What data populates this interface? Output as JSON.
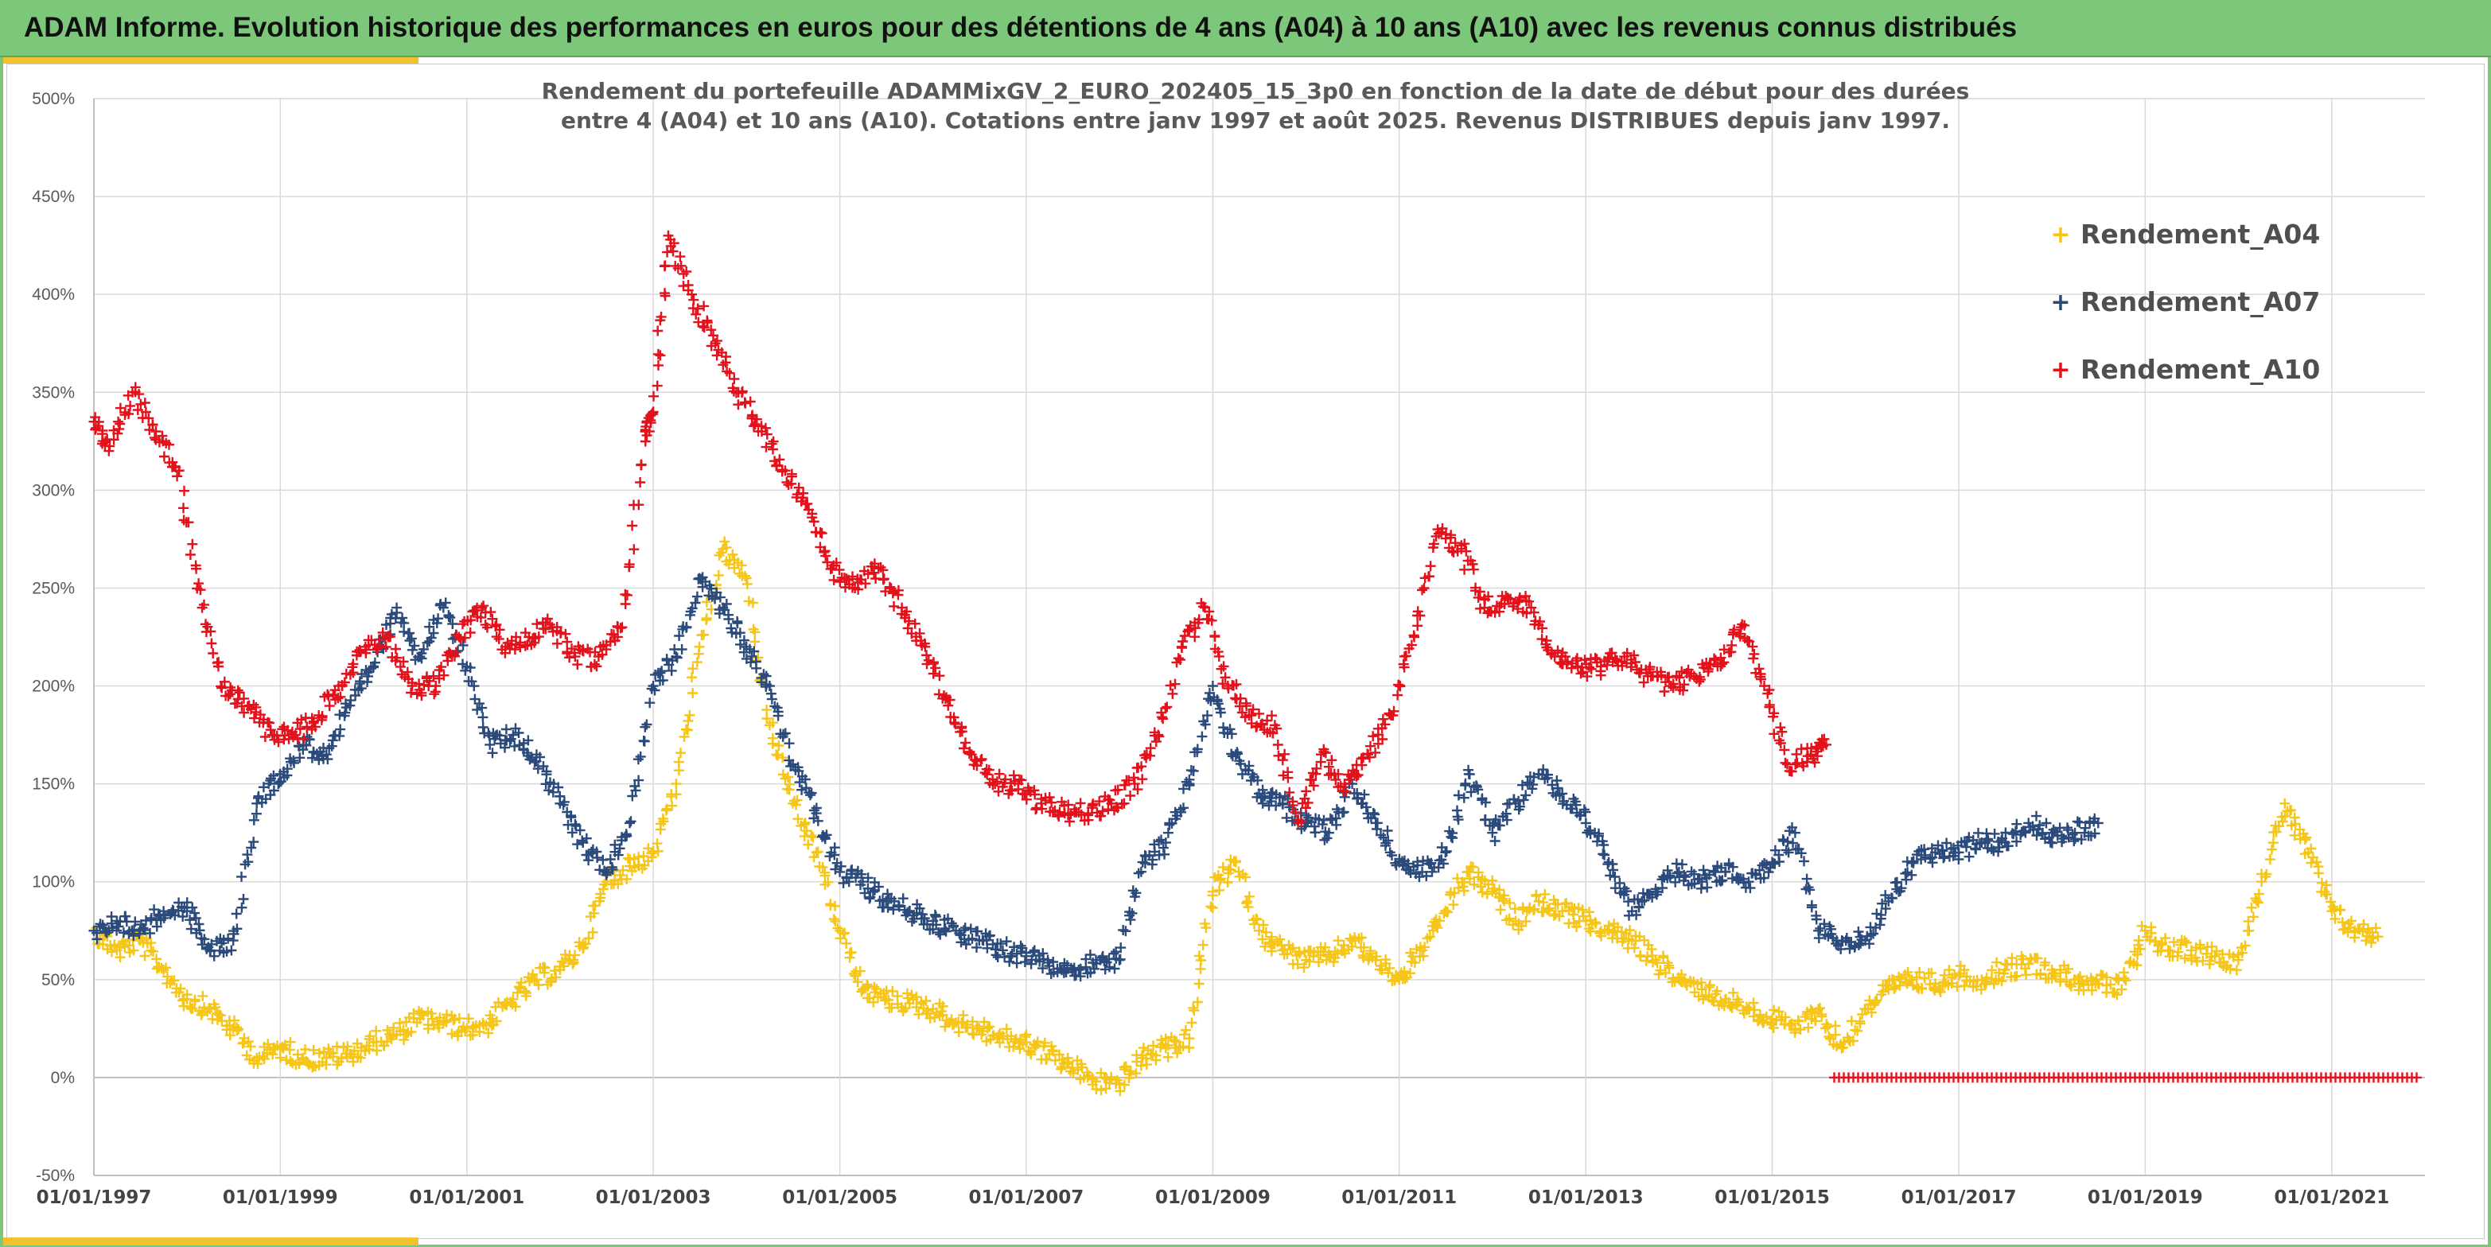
{
  "header": {
    "title": "ADAM Informe. Evolution historique des performances en euros pour des détentions de 4 ans (A04) à 10 ans (A10) avec les revenus connus distribués"
  },
  "colors": {
    "banner": "#7dc77a",
    "accent": "#f2c12e",
    "A04": "#f5c518",
    "A07": "#2b4a7c",
    "A10": "#e3111b",
    "grid": "#d9d9d9",
    "zero_line": "#bfbfbf"
  },
  "chart_data": {
    "type": "scatter",
    "marker": "plus",
    "title_lines": [
      "Rendement du portefeuille ADAMMixGV_2_EURO_202405_15_3p0  en fonction de la date de début pour des durées",
      "entre 4 (A04) et 10 ans (A10). Cotations entre janv 1997 et août 2025. Revenus DISTRIBUES depuis janv 1997."
    ],
    "xlabel": "",
    "ylabel": "",
    "x_range": [
      "1997-01-01",
      "2022-01-01"
    ],
    "ylim": [
      -50,
      500
    ],
    "y_ticks": [
      -50,
      0,
      50,
      100,
      150,
      200,
      250,
      300,
      350,
      400,
      450,
      500
    ],
    "y_tick_labels": [
      "-50%",
      "0%",
      "50%",
      "100%",
      "150%",
      "200%",
      "250%",
      "300%",
      "350%",
      "400%",
      "450%",
      "500%"
    ],
    "x_ticks": [
      "1997-01-01",
      "1999-01-01",
      "2001-01-01",
      "2003-01-01",
      "2005-01-01",
      "2007-01-01",
      "2009-01-01",
      "2011-01-01",
      "2013-01-01",
      "2015-01-01",
      "2017-01-01",
      "2019-01-01",
      "2021-01-01"
    ],
    "x_tick_labels": [
      "01/01/1997",
      "01/01/1999",
      "01/01/2001",
      "01/01/2003",
      "01/01/2005",
      "01/01/2007",
      "01/01/2009",
      "01/01/2011",
      "01/01/2013",
      "01/01/2015",
      "01/01/2017",
      "01/01/2019",
      "01/01/2021"
    ],
    "grid": true,
    "legend_position": "top-right",
    "series": [
      {
        "name": "Rendement_A04",
        "color": "#f5c518",
        "x": [
          "1997-01-01",
          "1997-04-01",
          "1997-07-01",
          "1997-10-01",
          "1998-01-01",
          "1998-04-01",
          "1998-07-01",
          "1998-10-01",
          "1999-01-01",
          "1999-04-01",
          "1999-07-01",
          "1999-10-01",
          "2000-01-01",
          "2000-04-01",
          "2000-07-01",
          "2000-10-01",
          "2001-01-01",
          "2001-04-01",
          "2001-07-01",
          "2001-10-01",
          "2002-01-01",
          "2002-04-01",
          "2002-07-01",
          "2002-10-01",
          "2003-01-01",
          "2003-04-01",
          "2003-07-01",
          "2003-10-01",
          "2004-01-01",
          "2004-04-01",
          "2004-07-01",
          "2004-10-01",
          "2005-01-01",
          "2005-04-01",
          "2005-07-01",
          "2005-10-01",
          "2006-01-01",
          "2006-04-01",
          "2006-07-01",
          "2006-10-01",
          "2007-01-01",
          "2007-04-01",
          "2007-07-01",
          "2007-10-01",
          "2008-01-01",
          "2008-04-01",
          "2008-07-01",
          "2008-10-01",
          "2009-01-01",
          "2009-04-01",
          "2009-07-01",
          "2009-10-01",
          "2010-01-01",
          "2010-04-01",
          "2010-07-01",
          "2010-10-01",
          "2011-01-01",
          "2011-04-01",
          "2011-07-01",
          "2011-10-01",
          "2012-01-01",
          "2012-04-01",
          "2012-07-01",
          "2012-10-01",
          "2013-01-01",
          "2013-04-01",
          "2013-07-01",
          "2013-10-01",
          "2014-01-01",
          "2014-04-01",
          "2014-07-01",
          "2014-10-01",
          "2015-01-01",
          "2015-04-01",
          "2015-07-01",
          "2015-10-01",
          "2016-01-01",
          "2016-04-01",
          "2016-07-01",
          "2016-10-01",
          "2017-01-01",
          "2017-04-01",
          "2017-07-01",
          "2017-10-01",
          "2018-01-01",
          "2018-04-01",
          "2018-07-01",
          "2018-10-01",
          "2019-01-01",
          "2019-04-01",
          "2019-07-01",
          "2019-10-01",
          "2020-01-01",
          "2020-04-01",
          "2020-07-01",
          "2020-10-01",
          "2021-01-01",
          "2021-04-01",
          "2021-07-01"
        ],
        "y": [
          75,
          65,
          70,
          55,
          40,
          35,
          25,
          10,
          15,
          10,
          10,
          12,
          18,
          22,
          30,
          28,
          25,
          28,
          40,
          50,
          55,
          68,
          100,
          108,
          115,
          150,
          220,
          270,
          255,
          180,
          140,
          115,
          75,
          45,
          40,
          38,
          35,
          28,
          25,
          20,
          18,
          12,
          5,
          -2,
          -3,
          10,
          15,
          20,
          95,
          110,
          75,
          65,
          60,
          62,
          70,
          60,
          50,
          65,
          85,
          105,
          95,
          80,
          90,
          85,
          80,
          75,
          70,
          60,
          50,
          45,
          40,
          35,
          30,
          25,
          35,
          15,
          35,
          45,
          50,
          48,
          52,
          50,
          55,
          58,
          55,
          50,
          48,
          45,
          75,
          65,
          65,
          62,
          60,
          100,
          140,
          115,
          85,
          75,
          72
        ]
      },
      {
        "name": "Rendement_A07",
        "color": "#2b4a7c",
        "x": [
          "1997-01-01",
          "1997-04-01",
          "1997-07-01",
          "1997-10-01",
          "1998-01-01",
          "1998-04-01",
          "1998-07-01",
          "1998-10-01",
          "1999-01-01",
          "1999-04-01",
          "1999-07-01",
          "1999-10-01",
          "2000-01-01",
          "2000-04-01",
          "2000-07-01",
          "2000-10-01",
          "2001-01-01",
          "2001-04-01",
          "2001-07-01",
          "2001-10-01",
          "2002-01-01",
          "2002-04-01",
          "2002-07-01",
          "2002-10-01",
          "2003-01-01",
          "2003-04-01",
          "2003-07-01",
          "2003-10-01",
          "2004-01-01",
          "2004-04-01",
          "2004-07-01",
          "2004-10-01",
          "2005-01-01",
          "2005-04-01",
          "2005-07-01",
          "2005-10-01",
          "2006-01-01",
          "2006-04-01",
          "2006-07-01",
          "2006-10-01",
          "2007-01-01",
          "2007-04-01",
          "2007-07-01",
          "2007-10-01",
          "2008-01-01",
          "2008-04-01",
          "2008-07-01",
          "2008-10-01",
          "2009-01-01",
          "2009-04-01",
          "2009-07-01",
          "2009-10-01",
          "2010-01-01",
          "2010-04-01",
          "2010-07-01",
          "2010-10-01",
          "2011-01-01",
          "2011-04-01",
          "2011-07-01",
          "2011-10-01",
          "2012-01-01",
          "2012-04-01",
          "2012-07-01",
          "2012-10-01",
          "2013-01-01",
          "2013-04-01",
          "2013-07-01",
          "2013-10-01",
          "2014-01-01",
          "2014-04-01",
          "2014-07-01",
          "2014-10-01",
          "2015-01-01",
          "2015-04-01",
          "2015-07-01",
          "2015-10-01",
          "2016-01-01",
          "2016-04-01",
          "2016-07-01",
          "2016-10-01",
          "2017-01-01",
          "2017-04-01",
          "2017-07-01",
          "2017-10-01",
          "2018-01-01",
          "2018-04-01",
          "2018-07-01"
        ],
        "y": [
          75,
          80,
          75,
          85,
          85,
          65,
          70,
          140,
          155,
          170,
          165,
          190,
          210,
          240,
          215,
          240,
          210,
          170,
          175,
          165,
          140,
          120,
          105,
          130,
          200,
          215,
          255,
          240,
          220,
          200,
          160,
          135,
          105,
          100,
          90,
          85,
          80,
          75,
          70,
          65,
          62,
          57,
          55,
          60,
          60,
          110,
          120,
          150,
          200,
          165,
          145,
          140,
          130,
          125,
          150,
          130,
          110,
          105,
          115,
          155,
          125,
          140,
          155,
          145,
          130,
          110,
          85,
          95,
          105,
          100,
          105,
          100,
          110,
          125,
          75,
          70,
          70,
          90,
          110,
          115,
          115,
          120,
          120,
          130,
          125,
          125,
          130
        ]
      },
      {
        "name": "Rendement_A10",
        "color": "#e3111b",
        "x": [
          "1997-01-01",
          "1997-03-01",
          "1997-06-01",
          "1997-09-01",
          "1997-12-01",
          "1998-03-01",
          "1998-06-01",
          "1998-09-01",
          "1998-12-01",
          "1999-03-01",
          "1999-06-01",
          "1999-09-01",
          "1999-12-01",
          "2000-03-01",
          "2000-06-01",
          "2000-09-01",
          "2000-12-01",
          "2001-03-01",
          "2001-06-01",
          "2001-09-01",
          "2001-12-01",
          "2002-03-01",
          "2002-06-01",
          "2002-09-01",
          "2002-12-01",
          "2003-01-01",
          "2003-03-01",
          "2003-06-01",
          "2003-09-01",
          "2003-12-01",
          "2004-03-01",
          "2004-06-01",
          "2004-09-01",
          "2004-12-01",
          "2005-03-01",
          "2005-06-01",
          "2005-09-01",
          "2005-12-01",
          "2006-03-01",
          "2006-06-01",
          "2006-09-01",
          "2006-12-01",
          "2007-03-01",
          "2007-06-01",
          "2007-09-01",
          "2007-12-01",
          "2008-03-01",
          "2008-06-01",
          "2008-09-01",
          "2008-12-01",
          "2009-03-01",
          "2009-06-01",
          "2009-09-01",
          "2009-12-01",
          "2010-03-01",
          "2010-06-01",
          "2010-09-01",
          "2010-12-01",
          "2011-03-01",
          "2011-06-01",
          "2011-09-01",
          "2011-12-01",
          "2012-03-01",
          "2012-06-01",
          "2012-09-01",
          "2012-12-01",
          "2013-03-01",
          "2013-06-01",
          "2013-09-01",
          "2013-12-01",
          "2014-03-01",
          "2014-06-01",
          "2014-09-01",
          "2014-12-01",
          "2015-03-01",
          "2015-06-01",
          "2015-08-01"
        ],
        "y": [
          335,
          320,
          350,
          330,
          310,
          240,
          195,
          190,
          175,
          175,
          185,
          200,
          220,
          225,
          200,
          200,
          225,
          240,
          220,
          225,
          230,
          215,
          215,
          230,
          330,
          340,
          430,
          400,
          375,
          350,
          330,
          310,
          290,
          260,
          250,
          260,
          240,
          220,
          190,
          165,
          150,
          150,
          140,
          135,
          135,
          140,
          150,
          175,
          220,
          240,
          200,
          185,
          180,
          130,
          165,
          150,
          165,
          185,
          225,
          280,
          270,
          240,
          245,
          240,
          215,
          210,
          210,
          215,
          205,
          200,
          205,
          210,
          230,
          200,
          160,
          165,
          170
        ]
      },
      {
        "name": "",
        "color": "#e3111b",
        "x_range": [
          "2015-09-01",
          "2021-12-01"
        ],
        "y_constant": 0
      }
    ]
  }
}
